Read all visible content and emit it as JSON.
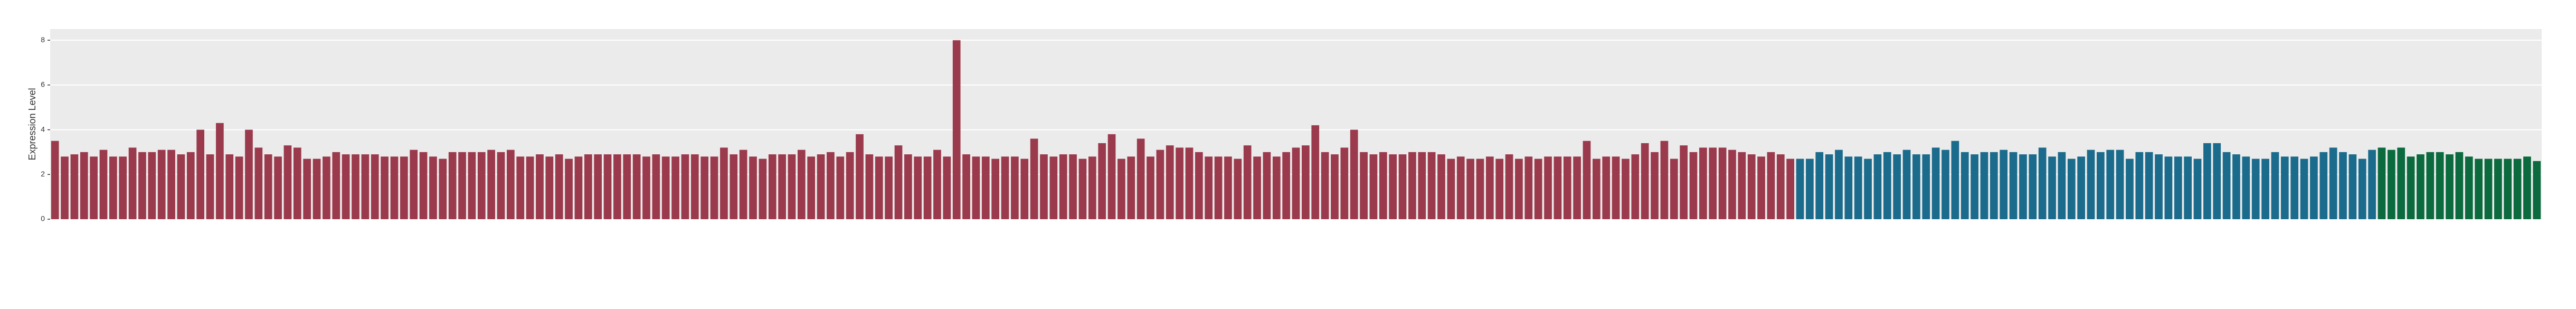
{
  "chart_data": {
    "type": "bar",
    "y_label": "Expression Level",
    "ylim": [
      0,
      8.5
    ],
    "yticks": [
      0,
      2,
      4,
      6,
      8
    ],
    "grid": true,
    "series": [
      {
        "color": "#9b3a4c",
        "values": [
          3.5,
          2.8,
          2.9,
          3.0,
          2.8,
          3.1,
          2.8,
          2.8,
          3.2,
          3.0,
          3.0,
          3.1,
          3.1,
          2.9,
          3.0,
          4.0,
          2.9,
          4.3,
          2.9,
          2.8,
          4.0,
          3.2,
          2.9,
          2.8,
          3.3,
          3.2,
          2.7,
          2.7,
          2.8,
          3.0,
          2.9,
          2.9,
          2.9,
          2.9,
          2.8,
          2.8,
          2.8,
          3.1,
          3.0,
          2.8,
          2.7,
          3.0,
          3.0,
          3.0,
          3.0,
          3.1,
          3.0,
          3.1,
          2.8,
          2.8,
          2.9,
          2.8,
          2.9,
          2.7,
          2.8,
          2.9,
          2.9,
          2.9,
          2.9,
          2.9,
          2.9,
          2.8,
          2.9,
          2.8,
          2.8,
          2.9,
          2.9,
          2.8,
          2.8,
          3.2,
          2.9,
          3.1,
          2.8,
          2.7,
          2.9,
          2.9,
          2.9,
          3.1,
          2.8,
          2.9,
          3.0,
          2.8,
          3.0,
          3.8,
          2.9,
          2.8,
          2.8,
          3.3,
          2.9,
          2.8,
          2.8,
          3.1,
          2.8,
          8.0,
          2.9,
          2.8,
          2.8,
          2.7,
          2.8,
          2.8,
          2.7,
          3.6,
          2.9,
          2.8,
          2.9,
          2.9,
          2.7,
          2.8,
          3.4,
          3.8,
          2.7,
          2.8,
          3.6,
          2.8,
          3.1,
          3.3,
          3.2,
          3.2,
          3.0,
          2.8,
          2.8,
          2.8,
          2.7,
          3.3,
          2.8,
          3.0,
          2.8,
          3.0,
          3.2,
          3.3,
          4.2,
          3.0,
          2.9,
          3.2,
          4.0,
          3.0,
          2.9,
          3.0,
          2.9,
          2.9,
          3.0,
          3.0,
          3.0,
          2.9,
          2.7,
          2.8,
          2.7,
          2.7,
          2.8,
          2.7,
          2.9,
          2.7,
          2.8,
          2.7,
          2.8,
          2.8,
          2.8,
          2.8,
          3.5,
          2.7,
          2.8,
          2.8,
          2.7,
          2.9,
          3.4,
          3.0,
          3.5,
          2.7,
          3.3,
          3.0,
          3.2,
          3.2,
          3.2,
          3.1,
          3.0,
          2.9,
          2.8,
          3.0,
          2.9,
          2.7
        ]
      },
      {
        "color": "#1b6b8c",
        "values": [
          2.7,
          2.7,
          3.0,
          2.9,
          3.1,
          2.8,
          2.8,
          2.7,
          2.9,
          3.0,
          2.9,
          3.1,
          2.9,
          2.9,
          3.2,
          3.1,
          3.5,
          3.0,
          2.9,
          3.0,
          3.0,
          3.1,
          3.0,
          2.9,
          2.9,
          3.2,
          2.8,
          3.0,
          2.7,
          2.8,
          3.1,
          3.0,
          3.1,
          3.1,
          2.7,
          3.0,
          3.0,
          2.9,
          2.8,
          2.8,
          2.8,
          2.7,
          3.4,
          3.4,
          3.0,
          2.9,
          2.8,
          2.7,
          2.7,
          3.0,
          2.8,
          2.8,
          2.7,
          2.8,
          3.0,
          3.2,
          3.0,
          2.9,
          2.7,
          3.1
        ]
      },
      {
        "color": "#0b6a3e",
        "values": [
          3.2,
          3.1,
          3.2,
          2.8,
          2.9,
          3.0,
          3.0,
          2.9,
          3.0,
          2.8,
          2.7,
          2.7,
          2.7,
          2.7,
          2.7,
          2.8,
          2.6
        ]
      }
    ]
  }
}
